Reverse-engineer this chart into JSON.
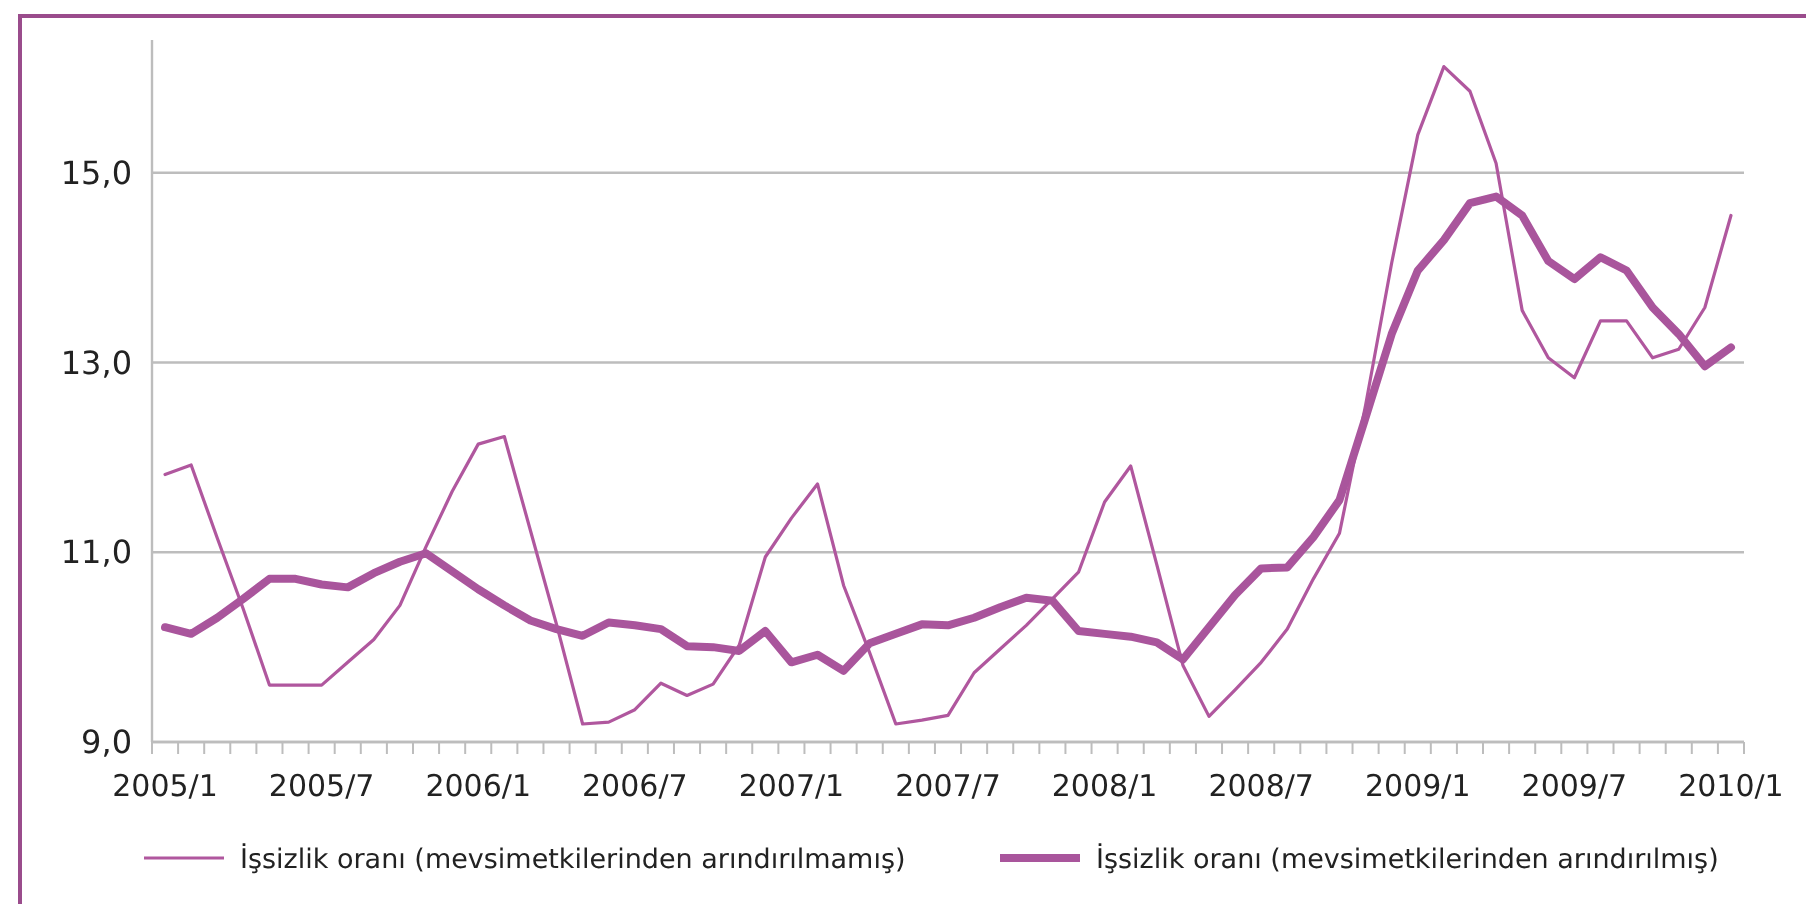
{
  "chart_data": {
    "type": "line",
    "categories": [
      "2005/1",
      null,
      null,
      null,
      null,
      null,
      "2005/7",
      null,
      null,
      null,
      null,
      null,
      "2006/1",
      null,
      null,
      null,
      null,
      null,
      "2006/7",
      null,
      null,
      null,
      null,
      null,
      "2007/1",
      null,
      null,
      null,
      null,
      null,
      "2007/7",
      null,
      null,
      null,
      null,
      null,
      "2008/1",
      null,
      null,
      null,
      null,
      null,
      "2008/7",
      null,
      null,
      null,
      null,
      null,
      "2009/1",
      null,
      null,
      null,
      null,
      null,
      "2009/7",
      null,
      null,
      null,
      null,
      null,
      "2010/1"
    ],
    "series": [
      {
        "name": "İşsizlik oranı (mevsimetkilerinden arındırılmamış)",
        "color": "#b0579e",
        "values": [
          11.82,
          11.92,
          11.15,
          10.4,
          9.6,
          9.6,
          9.6,
          9.84,
          10.08,
          10.44,
          11.06,
          11.64,
          12.14,
          12.22,
          11.23,
          10.24,
          9.19,
          9.21,
          9.34,
          9.62,
          9.49,
          9.61,
          10.02,
          10.95,
          11.36,
          11.72,
          10.65,
          9.94,
          9.19,
          9.23,
          9.28,
          9.73,
          9.98,
          10.23,
          10.51,
          10.79,
          11.53,
          11.91,
          10.87,
          9.81,
          9.27,
          9.55,
          9.84,
          10.19,
          10.72,
          11.2,
          12.55,
          14.05,
          15.4,
          16.12,
          15.86,
          15.1,
          13.55,
          13.05,
          12.84,
          13.44,
          13.44,
          13.05,
          13.14,
          13.58,
          14.55
        ]
      },
      {
        "name": "İşsizlik oranı (mevsimetkilerinden arındırılmış)",
        "color": "#a9559c",
        "values": [
          10.21,
          10.14,
          10.31,
          10.51,
          10.72,
          10.72,
          10.66,
          10.63,
          10.78,
          10.9,
          10.99,
          10.8,
          10.61,
          10.44,
          10.28,
          10.19,
          10.12,
          10.26,
          10.23,
          10.19,
          10.01,
          10.0,
          9.96,
          10.17,
          9.84,
          9.92,
          9.75,
          10.04,
          10.14,
          10.24,
          10.23,
          10.31,
          10.42,
          10.52,
          10.49,
          10.17,
          10.14,
          10.11,
          10.05,
          9.87,
          10.21,
          10.55,
          10.83,
          10.84,
          11.16,
          11.55,
          12.42,
          13.3,
          13.97,
          14.29,
          14.68,
          14.75,
          14.55,
          14.07,
          13.88,
          14.11,
          13.97,
          13.58,
          13.3,
          12.96,
          13.16
        ]
      }
    ],
    "ylim": [
      9,
      16.4
    ],
    "yticks": [
      {
        "value": 9,
        "label": "9,0"
      },
      {
        "value": 11,
        "label": "11,0"
      },
      {
        "value": 13,
        "label": "13,0"
      },
      {
        "value": 15,
        "label": "15,0"
      }
    ],
    "grid": "y",
    "legend": "bottom",
    "marker": "none",
    "line_style": "solid"
  }
}
